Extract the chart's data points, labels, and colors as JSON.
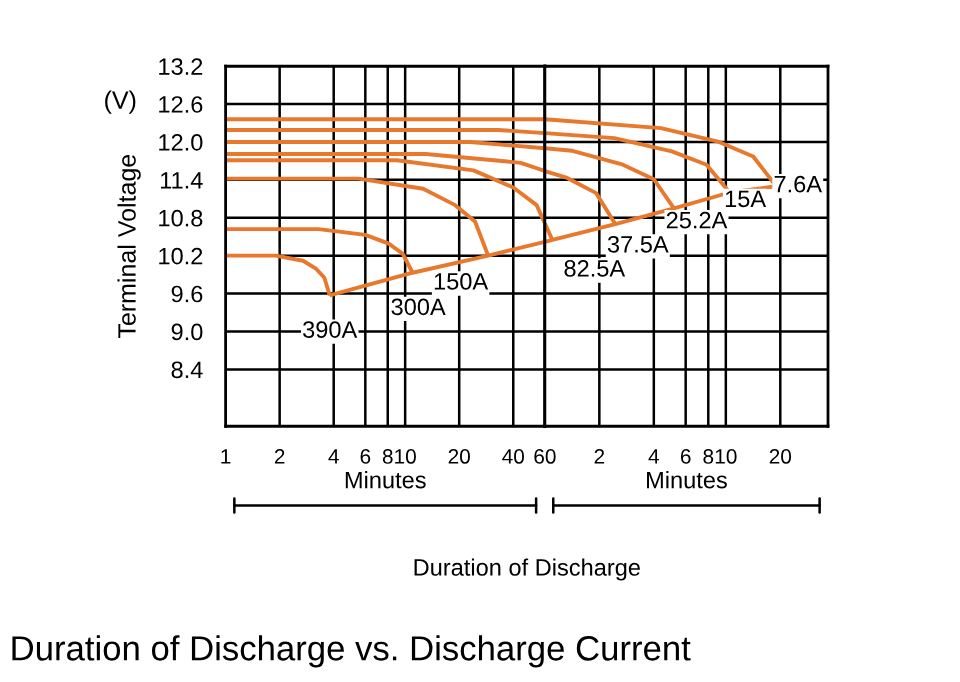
{
  "chart_data": [
    {
      "type": "line",
      "title": "Duration of Discharge vs. Discharge Current",
      "xlabel": "Duration of Discharge",
      "ylabel": "Terminal Voltage",
      "annotations": [
        "(V)",
        "Minutes"
      ],
      "log": "x",
      "xlim": [
        1,
        60
      ],
      "ylim": [
        7.5,
        13.2
      ],
      "xticks": [
        1,
        2,
        4,
        6,
        8,
        10,
        20,
        40,
        60
      ],
      "yticks": [
        8.4,
        {
          "value": 9,
          "label": "9.0"
        },
        9.6,
        10.2,
        10.8,
        11.4,
        {
          "value": 12,
          "label": "12.0"
        },
        12.6,
        13.2
      ],
      "grid": true,
      "legend": false,
      "marker": "none",
      "line_style": "solid",
      "series": [
        {
          "name": "390A",
          "color": "#e8782c",
          "x": [
            1,
            1.9,
            2.7,
            3.2,
            3.55,
            3.8
          ],
          "values": [
            10.2,
            10.2,
            10.12,
            9.99,
            9.85,
            9.57
          ]
        },
        {
          "name": "300A",
          "color": "#e8782c",
          "x": [
            1,
            3.3,
            6,
            8.1,
            9.7,
            11
          ],
          "values": [
            10.62,
            10.62,
            10.53,
            10.39,
            10.23,
            9.93
          ]
        },
        {
          "name": "150A",
          "color": "#e8782c",
          "x": [
            1,
            5.5,
            12.6,
            19,
            24.5,
            29
          ],
          "values": [
            11.42,
            11.42,
            11.26,
            11.0,
            10.74,
            10.2
          ]
        },
        {
          "color": "#e8782c",
          "x": [
            1,
            9,
            24,
            40,
            54,
            60
          ],
          "values": [
            11.71,
            11.71,
            11.55,
            11.28,
            11.0,
            10.71
          ]
        },
        {
          "color": "#e8782c",
          "x": [
            1,
            13,
            44,
            60
          ],
          "values": [
            11.81,
            11.81,
            11.67,
            11.54
          ]
        },
        {
          "color": "#e8782c",
          "x": [
            1,
            23,
            60
          ],
          "values": [
            12.0,
            12.0,
            11.9
          ]
        },
        {
          "color": "#e8782c",
          "x": [
            1,
            33,
            60
          ],
          "values": [
            12.19,
            12.19,
            12.14
          ]
        },
        {
          "color": "#e8782c",
          "x": [
            1,
            60
          ],
          "values": [
            12.36,
            12.36
          ]
        },
        {
          "color": "#e8782c",
          "x": [
            3.8,
            11,
            29,
            60
          ],
          "values": [
            9.57,
            9.93,
            10.2,
            10.42
          ]
        }
      ]
    },
    {
      "type": "line",
      "annotations": [
        "Minutes"
      ],
      "log": "x",
      "xlim": [
        1,
        36.7
      ],
      "ylim": [
        7.5,
        13.2
      ],
      "tick_labels": "x",
      "xticks": [
        2,
        4,
        6,
        8,
        10,
        20
      ],
      "yticks": [
        8.4,
        9,
        9.6,
        10.2,
        10.8,
        11.4,
        12,
        12.6,
        13.2
      ],
      "grid": true,
      "legend": false,
      "marker": "none",
      "line_style": "solid",
      "series": [
        {
          "name": "82.5A",
          "color": "#e8782c",
          "x": [
            1,
            1.1
          ],
          "values": [
            10.71,
            10.45
          ]
        },
        {
          "name": "37.5A",
          "color": "#e8782c",
          "x": [
            1,
            1.33,
            1.92,
            2.45
          ],
          "values": [
            11.54,
            11.43,
            11.19,
            10.7
          ]
        },
        {
          "name": "25.2A",
          "color": "#e8782c",
          "x": [
            1,
            1.42,
            2.7,
            4,
            5.17
          ],
          "values": [
            11.9,
            11.86,
            11.64,
            11.41,
            10.95
          ]
        },
        {
          "name": "15A",
          "color": "#e8782c",
          "x": [
            1,
            2.42,
            5.03,
            7.83,
            10.5
          ],
          "values": [
            12.14,
            12.06,
            11.85,
            11.64,
            11.2
          ]
        },
        {
          "name": "7.6A",
          "color": "#e8782c",
          "x": [
            1,
            4.38,
            9.17,
            14.17,
            19
          ],
          "values": [
            12.36,
            12.22,
            12.0,
            11.77,
            11.3
          ]
        },
        {
          "color": "#e8782c",
          "x": [
            1,
            1.1,
            2.45,
            5.17,
            10.5,
            19
          ],
          "values": [
            10.42,
            10.45,
            10.7,
            10.95,
            11.2,
            11.3
          ]
        }
      ]
    }
  ]
}
